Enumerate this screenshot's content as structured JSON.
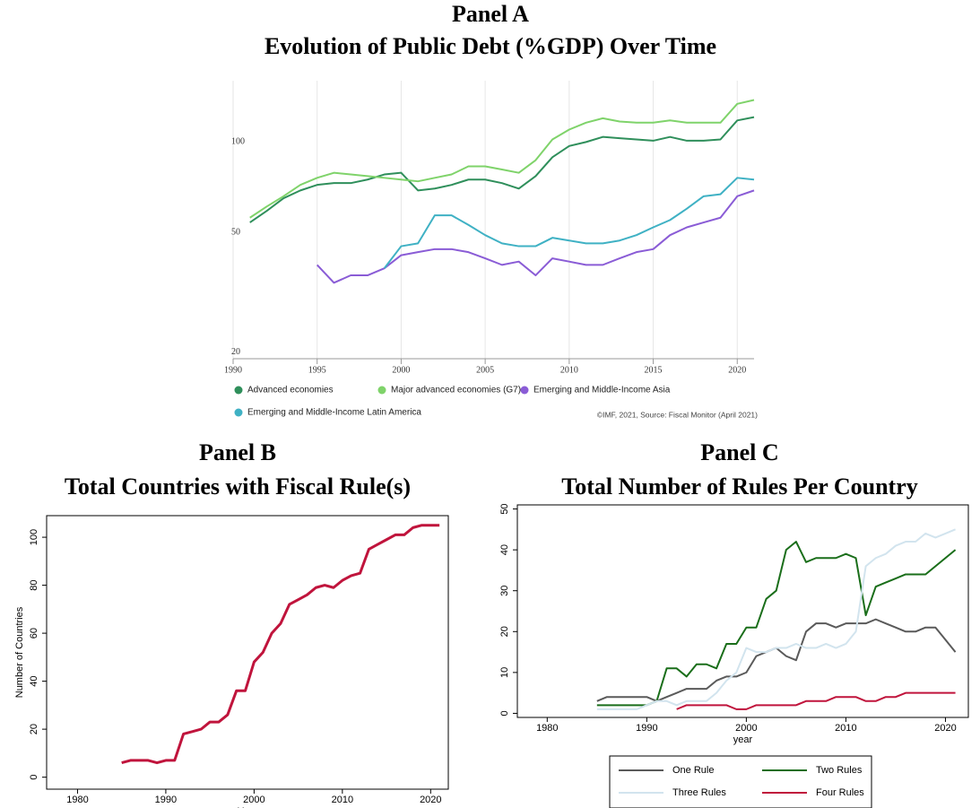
{
  "chart_data": [
    {
      "type": "line",
      "panel": "Panel A",
      "title": "Evolution of Public Debt (%GDP) Over Time",
      "x": [
        1991,
        1992,
        1993,
        1994,
        1995,
        1996,
        1997,
        1998,
        1999,
        2000,
        2001,
        2002,
        2003,
        2004,
        2005,
        2006,
        2007,
        2008,
        2009,
        2010,
        2011,
        2012,
        2013,
        2014,
        2015,
        2016,
        2017,
        2018,
        2019,
        2020,
        2021
      ],
      "series": [
        {
          "name": "Advanced economies",
          "color": "#2f8f5b",
          "values": [
            54,
            59,
            65,
            69,
            72,
            73,
            73,
            75,
            78,
            79,
            69,
            70,
            72,
            75,
            75,
            73,
            70,
            77,
            89,
            97,
            100,
            104,
            103,
            102,
            101,
            104,
            101,
            101,
            102,
            118,
            121
          ]
        },
        {
          "name": "Major advanced economies (G7)",
          "color": "#7fd36a",
          "values": [
            56,
            61,
            66,
            72,
            76,
            79,
            78,
            77,
            76,
            75,
            74,
            76,
            78,
            83,
            83,
            81,
            79,
            87,
            102,
            110,
            116,
            120,
            117,
            116,
            116,
            118,
            116,
            116,
            116,
            134,
            138
          ]
        },
        {
          "name": "Emerging and Middle-Income Asia",
          "color": "#8a5cd6",
          "values": [
            null,
            null,
            null,
            null,
            39,
            34,
            36,
            36,
            38,
            42,
            43,
            44,
            44,
            43,
            41,
            39,
            40,
            36,
            41,
            40,
            39,
            39,
            41,
            43,
            44,
            49,
            52,
            54,
            56,
            66,
            69
          ]
        },
        {
          "name": "Emerging and Middle-Income Latin America",
          "color": "#3fb1c4",
          "values": [
            null,
            null,
            null,
            null,
            null,
            null,
            null,
            null,
            38,
            45,
            46,
            57,
            57,
            53,
            49,
            46,
            45,
            45,
            48,
            47,
            46,
            46,
            47,
            49,
            52,
            55,
            60,
            66,
            67,
            76,
            75
          ]
        }
      ],
      "xlim": [
        1990,
        2021
      ],
      "ylim": [
        19,
        160
      ],
      "xticks": [
        1990,
        1995,
        2000,
        2005,
        2010,
        2015,
        2020
      ],
      "yticks": [
        20,
        50,
        100
      ],
      "log_y": true,
      "grid": true,
      "legend": "bottom",
      "note": "©IMF, 2021, Source: Fiscal Monitor (April 2021)"
    },
    {
      "type": "line",
      "panel": "Panel B",
      "title": "Total Countries with Fiscal Rule(s)",
      "x": [
        1985,
        1986,
        1987,
        1988,
        1989,
        1990,
        1991,
        1992,
        1993,
        1994,
        1995,
        1996,
        1997,
        1998,
        1999,
        2000,
        2001,
        2002,
        2003,
        2004,
        2005,
        2006,
        2007,
        2008,
        2009,
        2010,
        2011,
        2012,
        2013,
        2014,
        2015,
        2016,
        2017,
        2018,
        2019,
        2020,
        2021
      ],
      "values": [
        6,
        7,
        7,
        7,
        6,
        7,
        7,
        18,
        19,
        20,
        23,
        23,
        26,
        36,
        36,
        48,
        52,
        60,
        64,
        72,
        74,
        76,
        79,
        80,
        79,
        82,
        84,
        85,
        95,
        97,
        99,
        101,
        101,
        104,
        105,
        105,
        105
      ],
      "color": "#c0143c",
      "xlabel": "Year",
      "ylabel": "Number of Countries",
      "xlim": [
        1976.5,
        2022
      ],
      "ylim": [
        -5,
        109
      ],
      "xticks": [
        1980,
        1990,
        2000,
        2010,
        2020
      ],
      "yticks": [
        0,
        20,
        40,
        60,
        80,
        100
      ],
      "log_y": false,
      "grid": false
    },
    {
      "type": "line",
      "panel": "Panel C",
      "title": "Total Number of Rules Per Country",
      "x": [
        1985,
        1986,
        1987,
        1988,
        1989,
        1990,
        1991,
        1992,
        1993,
        1994,
        1995,
        1996,
        1997,
        1998,
        1999,
        2000,
        2001,
        2002,
        2003,
        2004,
        2005,
        2006,
        2007,
        2008,
        2009,
        2010,
        2011,
        2012,
        2013,
        2014,
        2015,
        2016,
        2017,
        2018,
        2019,
        2020,
        2021
      ],
      "series": [
        {
          "name": "One Rule",
          "color": "#5a5a5a",
          "values": [
            3,
            4,
            4,
            4,
            4,
            4,
            3,
            4,
            5,
            6,
            6,
            6,
            8,
            9,
            9,
            10,
            14,
            15,
            16,
            14,
            13,
            20,
            22,
            22,
            21,
            22,
            22,
            22,
            23,
            22,
            21,
            20,
            20,
            21,
            21,
            18,
            15
          ]
        },
        {
          "name": "Two Rules",
          "color": "#1a6e1a",
          "values": [
            2,
            2,
            2,
            2,
            2,
            2,
            3,
            11,
            11,
            9,
            12,
            12,
            11,
            17,
            17,
            21,
            21,
            28,
            30,
            40,
            42,
            37,
            38,
            38,
            38,
            39,
            38,
            24,
            31,
            32,
            33,
            34,
            34,
            34,
            36,
            38,
            40
          ]
        },
        {
          "name": "Three Rules",
          "color": "#d2e4ee",
          "values": [
            1,
            1,
            1,
            1,
            1,
            2,
            3,
            3,
            2,
            3,
            3,
            3,
            5,
            8,
            10,
            16,
            15,
            15,
            16,
            16,
            17,
            16,
            16,
            17,
            16,
            17,
            20,
            36,
            38,
            39,
            41,
            42,
            42,
            44,
            43,
            44,
            45
          ]
        },
        {
          "name": "Four Rules",
          "color": "#c0143c",
          "values": [
            null,
            null,
            null,
            null,
            null,
            null,
            null,
            null,
            1,
            2,
            2,
            2,
            2,
            2,
            1,
            1,
            2,
            2,
            2,
            2,
            2,
            3,
            3,
            3,
            4,
            4,
            4,
            3,
            3,
            4,
            4,
            5,
            5,
            5,
            5,
            5,
            5
          ]
        }
      ],
      "xlabel": "year",
      "xlim": [
        1977,
        2022.3
      ],
      "ylim": [
        -1,
        51
      ],
      "xticks": [
        1980,
        1990,
        2000,
        2010,
        2020
      ],
      "yticks": [
        0,
        10,
        20,
        30,
        40,
        50
      ],
      "log_y": false,
      "grid": false,
      "legend": "bottom"
    }
  ]
}
